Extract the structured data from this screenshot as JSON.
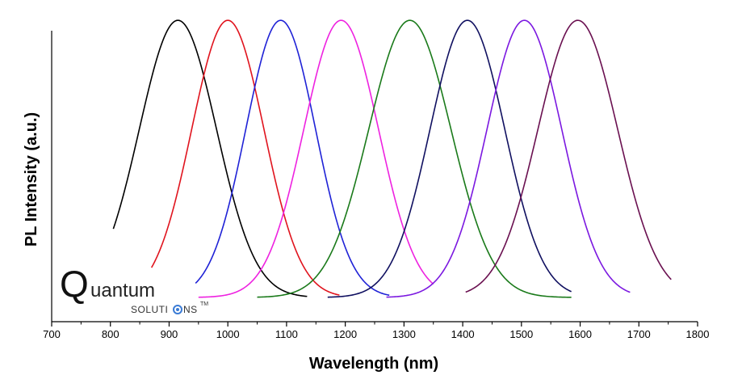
{
  "chart_data": {
    "type": "line",
    "title": "",
    "xlabel": "Wavelength (nm)",
    "ylabel": "PL Intensity (a.u.)",
    "xlim": [
      700,
      1800
    ],
    "xticks": [
      "700",
      "800",
      "900",
      "1000",
      "1100",
      "1200",
      "1300",
      "1400",
      "1500",
      "1600",
      "1700",
      "1800"
    ],
    "ylim": [
      0,
      1.05
    ],
    "yticks_visible": false,
    "grid": false,
    "legend": "none",
    "series": [
      {
        "color": "#000000",
        "peak": 915,
        "fwhm": 155,
        "x_range": [
          805,
          1135
        ]
      },
      {
        "color": "#e0141e",
        "peak": 1000,
        "fwhm": 145,
        "x_range": [
          870,
          1190
        ]
      },
      {
        "color": "#1f22d6",
        "peak": 1090,
        "fwhm": 140,
        "x_range": [
          945,
          1275
        ]
      },
      {
        "color": "#ee22e0",
        "peak": 1193,
        "fwhm": 150,
        "x_range": [
          950,
          1350
        ]
      },
      {
        "color": "#1a7a1a",
        "peak": 1310,
        "fwhm": 165,
        "x_range": [
          1050,
          1585
        ]
      },
      {
        "color": "#101060",
        "peak": 1408,
        "fwhm": 150,
        "x_range": [
          1170,
          1585
        ]
      },
      {
        "color": "#7b18e0",
        "peak": 1505,
        "fwhm": 150,
        "x_range": [
          1270,
          1685
        ]
      },
      {
        "color": "#6a1050",
        "peak": 1596,
        "fwhm": 160,
        "x_range": [
          1405,
          1755
        ]
      }
    ]
  },
  "logo": {
    "q": "Q",
    "rest": "uantum",
    "sub_before": "SOLUTI",
    "sub_after": "NS",
    "tm": "TM",
    "ring_color": "#3a7bd5"
  }
}
